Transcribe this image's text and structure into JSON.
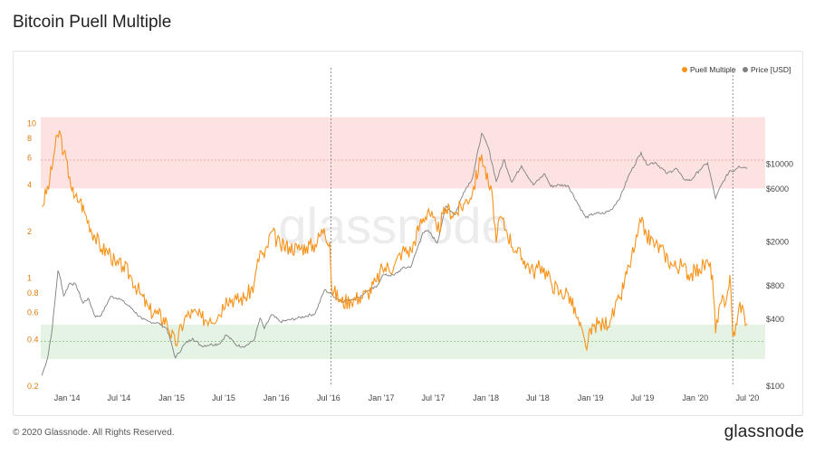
{
  "title": "Bitcoin Puell Multiple",
  "footer": "© 2020 Glassnode. All Rights Reserved.",
  "brand": "glassnode",
  "watermark": "glassnode",
  "colors": {
    "puell": "#f7931a",
    "price": "#7f7f7f",
    "red_band": "#fde2e2",
    "green_band": "#e4f3e4",
    "left_axis": "#e07b0c",
    "right_axis": "#444444"
  },
  "chart_data": {
    "type": "line",
    "title": "Bitcoin Puell Multiple",
    "legend_position": "top-right",
    "legend": [
      {
        "name": "Puell Multiple",
        "color": "#f7931a"
      },
      {
        "name": "Price [USD]",
        "color": "#7f7f7f"
      }
    ],
    "x_ticks": [
      {
        "label": "Jan '14",
        "date": "2014-01-01"
      },
      {
        "label": "Jul '14",
        "date": "2014-07-01"
      },
      {
        "label": "Jan '15",
        "date": "2015-01-01"
      },
      {
        "label": "Jul '15",
        "date": "2015-07-01"
      },
      {
        "label": "Jan '16",
        "date": "2016-01-01"
      },
      {
        "label": "Jul '16",
        "date": "2016-07-01"
      },
      {
        "label": "Jan '17",
        "date": "2017-01-01"
      },
      {
        "label": "Jul '17",
        "date": "2017-07-01"
      },
      {
        "label": "Jan '18",
        "date": "2018-01-01"
      },
      {
        "label": "Jul '18",
        "date": "2018-07-01"
      },
      {
        "label": "Jan '19",
        "date": "2019-01-01"
      },
      {
        "label": "Jul '19",
        "date": "2019-07-01"
      },
      {
        "label": "Jan '20",
        "date": "2020-01-01"
      },
      {
        "label": "Jul '20",
        "date": "2020-07-01"
      }
    ],
    "xlim": [
      "2013-10-01",
      "2020-09-01"
    ],
    "y_left": {
      "scale": "log",
      "ylim": [
        0.2,
        12
      ],
      "ticks": [
        {
          "label": "10",
          "value": 10
        },
        {
          "label": "8",
          "value": 8
        },
        {
          "label": "6",
          "value": 6
        },
        {
          "label": "4",
          "value": 4
        },
        {
          "label": "2",
          "value": 2
        },
        {
          "label": "1",
          "value": 1
        },
        {
          "label": "0.8",
          "value": 0.8
        },
        {
          "label": "0.6",
          "value": 0.6
        },
        {
          "label": "0.4",
          "value": 0.4
        },
        {
          "label": "0.2",
          "value": 0.2
        }
      ]
    },
    "y_right": {
      "scale": "log",
      "ylim": [
        100,
        30000
      ],
      "ticks": [
        {
          "label": "$10000",
          "value": 10000
        },
        {
          "label": "$6000",
          "value": 6000
        },
        {
          "label": "$2000",
          "value": 2000
        },
        {
          "label": "$800",
          "value": 800
        },
        {
          "label": "$400",
          "value": 400
        },
        {
          "label": "$100",
          "value": 100
        }
      ]
    },
    "bands": [
      {
        "color": "#fde2e2",
        "from": 3.8,
        "to": 11,
        "reference_line": 5.8
      },
      {
        "color": "#e4f3e4",
        "from": 0.3,
        "to": 0.5,
        "reference_line": 0.39
      }
    ],
    "vertical_lines": [
      "2016-07-09",
      "2020-05-11"
    ],
    "series": [
      {
        "name": "Puell Multiple",
        "axis": "left",
        "color": "#f7931a",
        "points": [
          [
            "2013-10-05",
            2.9
          ],
          [
            "2013-11-01",
            4.2
          ],
          [
            "2013-11-20",
            7.0
          ],
          [
            "2013-12-05",
            9.0
          ],
          [
            "2013-12-20",
            6.5
          ],
          [
            "2014-01-10",
            4.5
          ],
          [
            "2014-01-25",
            3.3
          ],
          [
            "2014-02-15",
            3.2
          ],
          [
            "2014-03-05",
            2.6
          ],
          [
            "2014-04-05",
            1.9
          ],
          [
            "2014-05-01",
            1.55
          ],
          [
            "2014-06-01",
            1.45
          ],
          [
            "2014-06-20",
            1.2
          ],
          [
            "2014-07-15",
            1.2
          ],
          [
            "2014-08-15",
            1.0
          ],
          [
            "2014-09-15",
            0.78
          ],
          [
            "2014-10-15",
            0.62
          ],
          [
            "2014-11-15",
            0.58
          ],
          [
            "2014-12-15",
            0.52
          ],
          [
            "2015-01-14",
            0.37
          ],
          [
            "2015-02-15",
            0.55
          ],
          [
            "2015-03-15",
            0.6
          ],
          [
            "2015-04-15",
            0.55
          ],
          [
            "2015-05-15",
            0.55
          ],
          [
            "2015-06-15",
            0.58
          ],
          [
            "2015-07-10",
            0.75
          ],
          [
            "2015-08-15",
            0.72
          ],
          [
            "2015-09-15",
            0.75
          ],
          [
            "2015-10-15",
            0.9
          ],
          [
            "2015-11-05",
            1.5
          ],
          [
            "2015-11-20",
            1.35
          ],
          [
            "2015-12-15",
            2.0
          ],
          [
            "2016-01-15",
            1.6
          ],
          [
            "2016-02-15",
            1.6
          ],
          [
            "2016-03-15",
            1.55
          ],
          [
            "2016-04-15",
            1.6
          ],
          [
            "2016-05-15",
            1.65
          ],
          [
            "2016-06-15",
            2.1
          ],
          [
            "2016-07-05",
            1.7
          ],
          [
            "2016-07-12",
            0.85
          ],
          [
            "2016-08-15",
            0.7
          ],
          [
            "2016-09-15",
            0.72
          ],
          [
            "2016-10-15",
            0.75
          ],
          [
            "2016-11-15",
            0.8
          ],
          [
            "2016-12-15",
            0.95
          ],
          [
            "2017-01-05",
            1.15
          ],
          [
            "2017-02-15",
            1.2
          ],
          [
            "2017-03-15",
            1.5
          ],
          [
            "2017-04-15",
            1.5
          ],
          [
            "2017-05-15",
            2.2
          ],
          [
            "2017-06-15",
            2.8
          ],
          [
            "2017-07-15",
            2.0
          ],
          [
            "2017-08-15",
            2.8
          ],
          [
            "2017-09-15",
            2.6
          ],
          [
            "2017-10-15",
            3.0
          ],
          [
            "2017-11-15",
            3.6
          ],
          [
            "2017-12-17",
            6.3
          ],
          [
            "2018-01-10",
            4.0
          ],
          [
            "2018-01-25",
            3.2
          ],
          [
            "2018-02-06",
            1.7
          ],
          [
            "2018-02-20",
            2.5
          ],
          [
            "2018-03-15",
            2.0
          ],
          [
            "2018-04-15",
            1.5
          ],
          [
            "2018-05-15",
            1.3
          ],
          [
            "2018-06-15",
            1.1
          ],
          [
            "2018-07-15",
            1.2
          ],
          [
            "2018-08-15",
            0.95
          ],
          [
            "2018-09-15",
            0.8
          ],
          [
            "2018-10-15",
            0.8
          ],
          [
            "2018-11-15",
            0.55
          ],
          [
            "2018-12-15",
            0.36
          ],
          [
            "2019-01-15",
            0.5
          ],
          [
            "2019-02-15",
            0.5
          ],
          [
            "2019-03-15",
            0.55
          ],
          [
            "2019-04-15",
            0.75
          ],
          [
            "2019-05-15",
            1.2
          ],
          [
            "2019-06-05",
            1.6
          ],
          [
            "2019-06-26",
            2.3
          ],
          [
            "2019-07-15",
            1.9
          ],
          [
            "2019-08-15",
            1.65
          ],
          [
            "2019-09-15",
            1.45
          ],
          [
            "2019-10-15",
            1.2
          ],
          [
            "2019-11-15",
            1.2
          ],
          [
            "2019-12-15",
            1.05
          ],
          [
            "2020-01-15",
            1.15
          ],
          [
            "2020-02-15",
            1.25
          ],
          [
            "2020-03-01",
            1.05
          ],
          [
            "2020-03-12",
            0.44
          ],
          [
            "2020-04-01",
            0.7
          ],
          [
            "2020-04-20",
            0.75
          ],
          [
            "2020-05-01",
            1.05
          ],
          [
            "2020-05-11",
            0.42
          ],
          [
            "2020-05-25",
            0.5
          ],
          [
            "2020-06-05",
            0.7
          ],
          [
            "2020-06-20",
            0.58
          ],
          [
            "2020-07-01",
            0.5
          ]
        ]
      },
      {
        "name": "Price [USD]",
        "axis": "right",
        "color": "#7f7f7f",
        "points": [
          [
            "2013-10-05",
            125
          ],
          [
            "2013-10-25",
            180
          ],
          [
            "2013-11-10",
            330
          ],
          [
            "2013-11-30",
            1100
          ],
          [
            "2013-12-10",
            900
          ],
          [
            "2013-12-20",
            650
          ],
          [
            "2014-01-10",
            850
          ],
          [
            "2014-02-01",
            820
          ],
          [
            "2014-02-25",
            560
          ],
          [
            "2014-03-15",
            620
          ],
          [
            "2014-04-10",
            420
          ],
          [
            "2014-05-01",
            440
          ],
          [
            "2014-06-01",
            640
          ],
          [
            "2014-07-01",
            620
          ],
          [
            "2014-08-15",
            500
          ],
          [
            "2014-09-20",
            400
          ],
          [
            "2014-10-15",
            380
          ],
          [
            "2014-11-15",
            370
          ],
          [
            "2014-12-15",
            330
          ],
          [
            "2015-01-14",
            180
          ],
          [
            "2015-02-15",
            240
          ],
          [
            "2015-03-15",
            270
          ],
          [
            "2015-04-15",
            230
          ],
          [
            "2015-05-15",
            237
          ],
          [
            "2015-06-15",
            240
          ],
          [
            "2015-07-10",
            290
          ],
          [
            "2015-08-20",
            230
          ],
          [
            "2015-09-15",
            230
          ],
          [
            "2015-10-15",
            260
          ],
          [
            "2015-11-05",
            410
          ],
          [
            "2015-11-20",
            330
          ],
          [
            "2015-12-15",
            440
          ],
          [
            "2016-01-15",
            380
          ],
          [
            "2016-03-15",
            410
          ],
          [
            "2016-05-15",
            450
          ],
          [
            "2016-06-17",
            740
          ],
          [
            "2016-07-15",
            660
          ],
          [
            "2016-08-15",
            580
          ],
          [
            "2016-10-15",
            630
          ],
          [
            "2016-11-15",
            730
          ],
          [
            "2016-12-15",
            780
          ],
          [
            "2017-01-05",
            1000
          ],
          [
            "2017-02-15",
            1000
          ],
          [
            "2017-03-15",
            1150
          ],
          [
            "2017-04-15",
            1200
          ],
          [
            "2017-05-25",
            2400
          ],
          [
            "2017-06-15",
            2500
          ],
          [
            "2017-07-15",
            1950
          ],
          [
            "2017-08-15",
            4200
          ],
          [
            "2017-09-15",
            3500
          ],
          [
            "2017-10-15",
            5600
          ],
          [
            "2017-11-15",
            7500
          ],
          [
            "2017-12-17",
            19000
          ],
          [
            "2018-01-10",
            14000
          ],
          [
            "2018-02-06",
            7000
          ],
          [
            "2018-03-05",
            11000
          ],
          [
            "2018-04-01",
            6900
          ],
          [
            "2018-05-05",
            9700
          ],
          [
            "2018-06-15",
            6500
          ],
          [
            "2018-07-25",
            8200
          ],
          [
            "2018-08-15",
            6300
          ],
          [
            "2018-09-15",
            6500
          ],
          [
            "2018-10-15",
            6400
          ],
          [
            "2018-11-20",
            4300
          ],
          [
            "2018-12-15",
            3300
          ],
          [
            "2019-01-15",
            3600
          ],
          [
            "2019-02-15",
            3600
          ],
          [
            "2019-03-15",
            3900
          ],
          [
            "2019-04-15",
            5100
          ],
          [
            "2019-05-15",
            8000
          ],
          [
            "2019-06-26",
            12800
          ],
          [
            "2019-07-15",
            10000
          ],
          [
            "2019-08-15",
            10400
          ],
          [
            "2019-09-25",
            8200
          ],
          [
            "2019-10-26",
            9200
          ],
          [
            "2019-11-20",
            7400
          ],
          [
            "2019-12-15",
            7100
          ],
          [
            "2020-01-15",
            8800
          ],
          [
            "2020-02-13",
            10300
          ],
          [
            "2020-03-12",
            4900
          ],
          [
            "2020-04-01",
            6500
          ],
          [
            "2020-05-01",
            8800
          ],
          [
            "2020-05-11",
            8600
          ],
          [
            "2020-06-01",
            9600
          ],
          [
            "2020-06-20",
            9400
          ],
          [
            "2020-07-01",
            9200
          ]
        ]
      }
    ]
  }
}
